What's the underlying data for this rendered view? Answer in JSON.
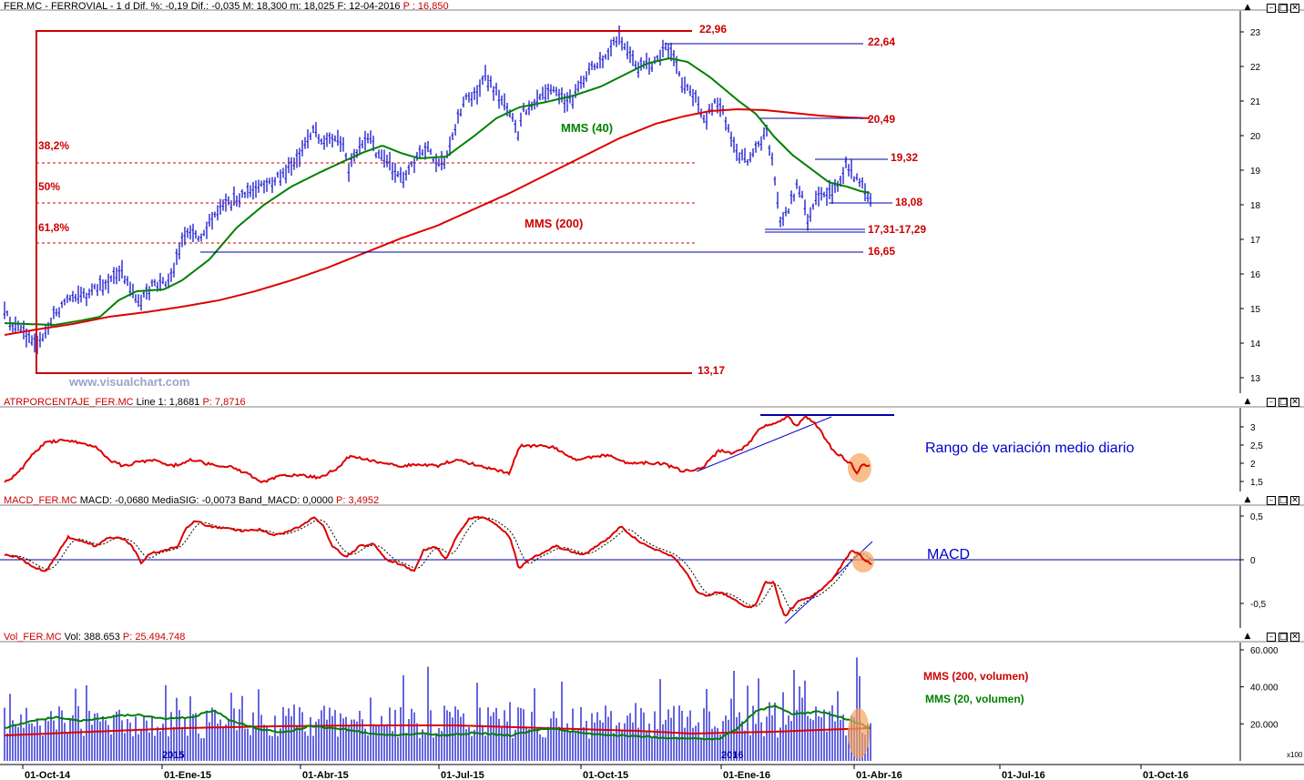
{
  "panels": {
    "price": {
      "header": {
        "symbol": "FER.MC - FERROVIAL - 1 d",
        "dif_pct": "Dif. %: -0,19",
        "dif": "Dif.: -0,035",
        "high": "M: 18,300",
        "low": "m: 18,025",
        "date": "F: 12-04-2016",
        "price": "P : 16,850"
      },
      "watermark": "www.visualchart.com",
      "y_ticks": [
        "23",
        "22",
        "21",
        "20",
        "19",
        "18",
        "17",
        "16",
        "15",
        "14",
        "13"
      ],
      "levels": {
        "top": "22,96",
        "l2264": "22,64",
        "l2049": "20,49",
        "l1932": "19,32",
        "l1808": "18,08",
        "l1731": "17,31-17,29",
        "l1665": "16,65",
        "bottom": "13,17"
      },
      "fib": {
        "f382": "38,2%",
        "f50": "50%",
        "f618": "61,8%"
      },
      "ma_labels": {
        "mms40": "MMS (40)",
        "mms200": "MMS (200)"
      }
    },
    "atr": {
      "header": {
        "name": "ATRPORCENTAJE_FER.MC",
        "line1": "Line 1: 1,8681",
        "p": "P: 7,8716"
      },
      "y_ticks": [
        "3",
        "2,5",
        "2",
        "1,5"
      ],
      "annotation": "Rango de variación medio diario"
    },
    "macd": {
      "header": {
        "name": "MACD_FER.MC",
        "macd": "MACD: -0,0680",
        "signal": "MediaSIG: -0,0073",
        "band": "Band_MACD: 0,0000",
        "p": "P: 3,4952"
      },
      "y_ticks": [
        "0,5",
        "0",
        "-0,5"
      ],
      "annotation": "MACD"
    },
    "volume": {
      "header": {
        "name": "Vol_FER.MC",
        "vol": "Vol: 388.653",
        "p": "P: 25.494.748"
      },
      "y_ticks": [
        "60.000",
        "40.000",
        "20.000"
      ],
      "scale": "x100",
      "legend": {
        "mms200": "MMS (200, volumen)",
        "mms20": "MMS (20, volumen)"
      },
      "year_labels": [
        "2015",
        "2016"
      ]
    }
  },
  "x_axis": {
    "labels": [
      "01-Oct-14",
      "01-Ene-15",
      "01-Abr-15",
      "01-Jul-15",
      "01-Oct-15",
      "01-Ene-16",
      "01-Abr-16",
      "01-Jul-16",
      "01-Oct-16"
    ]
  },
  "colors": {
    "price_bars": "#0000cc",
    "ma40": "#008000",
    "ma200": "#dd0000",
    "level_line": "#0000aa",
    "fib_line": "#cc0000",
    "annotation_red": "#cc0000",
    "highlight": "#f5a25a"
  },
  "icons": {
    "panel_controls": [
      "scroll-up-icon",
      "minimize-icon",
      "maximize-icon",
      "close-icon"
    ]
  },
  "chart_data": [
    {
      "type": "line",
      "title": "FER.MC - FERROVIAL - 1 d",
      "series": [
        {
          "name": "MMS (40)",
          "x": [
            "01-Oct-14",
            "01-Ene-15",
            "01-Abr-15",
            "01-Jul-15",
            "01-Oct-15",
            "01-Ene-16",
            "01-Abr-16"
          ],
          "values": [
            14.6,
            15.6,
            19.6,
            18.9,
            22.1,
            20.4,
            18.3
          ]
        },
        {
          "name": "MMS (200)",
          "x": [
            "01-Oct-14",
            "01-Ene-15",
            "01-Abr-15",
            "01-Jul-15",
            "01-Oct-15",
            "01-Ene-16",
            "01-Abr-16"
          ],
          "values": [
            14.3,
            14.9,
            16.1,
            18.3,
            20.4,
            20.6,
            20.5
          ]
        }
      ],
      "y_range": [
        12.7,
        23.4
      ]
    },
    {
      "type": "line",
      "title": "ATRPORCENTAJE_FER.MC",
      "series": [
        {
          "name": "Line 1",
          "x": [
            "01-Oct-14",
            "01-Ene-15",
            "01-Abr-15",
            "01-Jul-15",
            "01-Oct-15",
            "01-Ene-16",
            "01-Abr-16"
          ],
          "values": [
            1.7,
            2.2,
            2.1,
            2.5,
            2.2,
            2.6,
            1.87
          ]
        }
      ],
      "y_range": [
        1.2,
        3.4
      ]
    },
    {
      "type": "line",
      "title": "MACD_FER.MC",
      "series": [
        {
          "name": "MACD",
          "x": [
            "01-Oct-14",
            "01-Ene-15",
            "01-Abr-15",
            "01-Jul-15",
            "01-Oct-15",
            "01-Ene-16",
            "01-Abr-16"
          ],
          "values": [
            0.05,
            0.1,
            0.35,
            0.3,
            0.3,
            -0.5,
            -0.068
          ]
        },
        {
          "name": "MediaSIG",
          "x": [
            "01-Oct-14",
            "01-Ene-15",
            "01-Abr-15",
            "01-Jul-15",
            "01-Oct-15",
            "01-Ene-16",
            "01-Abr-16"
          ],
          "values": [
            0.03,
            0.08,
            0.3,
            0.25,
            0.3,
            -0.45,
            -0.0073
          ]
        }
      ],
      "y_range": [
        -0.8,
        0.55
      ]
    },
    {
      "type": "bar",
      "title": "Vol_FER.MC",
      "series": [
        {
          "name": "MMS (200, volumen)",
          "x": [
            "01-Oct-14",
            "01-Ene-15",
            "01-Abr-15",
            "01-Jul-15",
            "01-Oct-15",
            "01-Ene-16",
            "01-Abr-16"
          ],
          "values": [
            19000,
            21000,
            22000,
            22000,
            21000,
            19000,
            20000
          ]
        },
        {
          "name": "MMS (20, volumen)",
          "x": [
            "01-Oct-14",
            "01-Ene-15",
            "01-Abr-15",
            "01-Jul-15",
            "01-Oct-15",
            "01-Ene-16",
            "01-Abr-16"
          ],
          "values": [
            22000,
            24000,
            22000,
            21000,
            19000,
            30000,
            22000
          ]
        }
      ],
      "y_range": [
        0,
        62000
      ]
    }
  ]
}
